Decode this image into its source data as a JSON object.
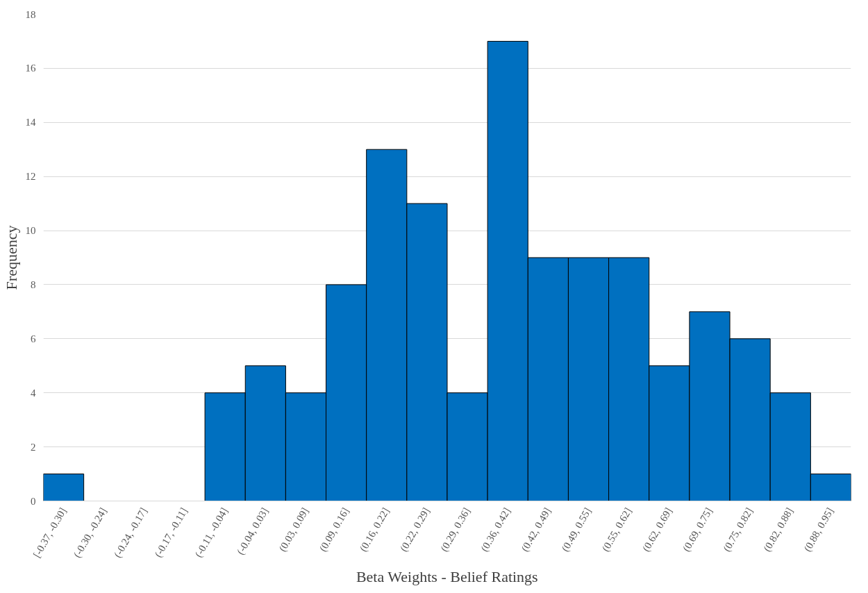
{
  "chart_data": {
    "type": "bar",
    "xlabel": "Beta Weights - Belief Ratings",
    "ylabel": "Frequency",
    "categories": [
      "[-0.37, -0.30]",
      "(-0.30, -0.24]",
      "(-0.24, -0.17]",
      "(-0.17, -0.11]",
      "(-0.11, -0.04]",
      "(-0.04, 0.03]",
      "(0.03, 0.09]",
      "(0.09, 0.16]",
      "(0.16, 0.22]",
      "(0.22, 0.29]",
      "(0.29, 0.36]",
      "(0.36, 0.42]",
      "(0.42, 0.49]",
      "(0.49, 0.55]",
      "(0.55, 0.62]",
      "(0.62, 0.69]",
      "(0.69, 0.75]",
      "(0.75, 0.82]",
      "(0.82, 0.88]",
      "(0.88, 0.95]"
    ],
    "values": [
      1,
      0,
      0,
      0,
      4,
      5,
      4,
      8,
      13,
      11,
      4,
      17,
      9,
      9,
      9,
      5,
      7,
      6,
      4,
      1
    ],
    "color": "#0070c0",
    "ylim": [
      0,
      18
    ],
    "yticks": [
      0,
      2,
      4,
      6,
      8,
      10,
      12,
      14,
      16,
      18
    ],
    "grid": "y"
  }
}
